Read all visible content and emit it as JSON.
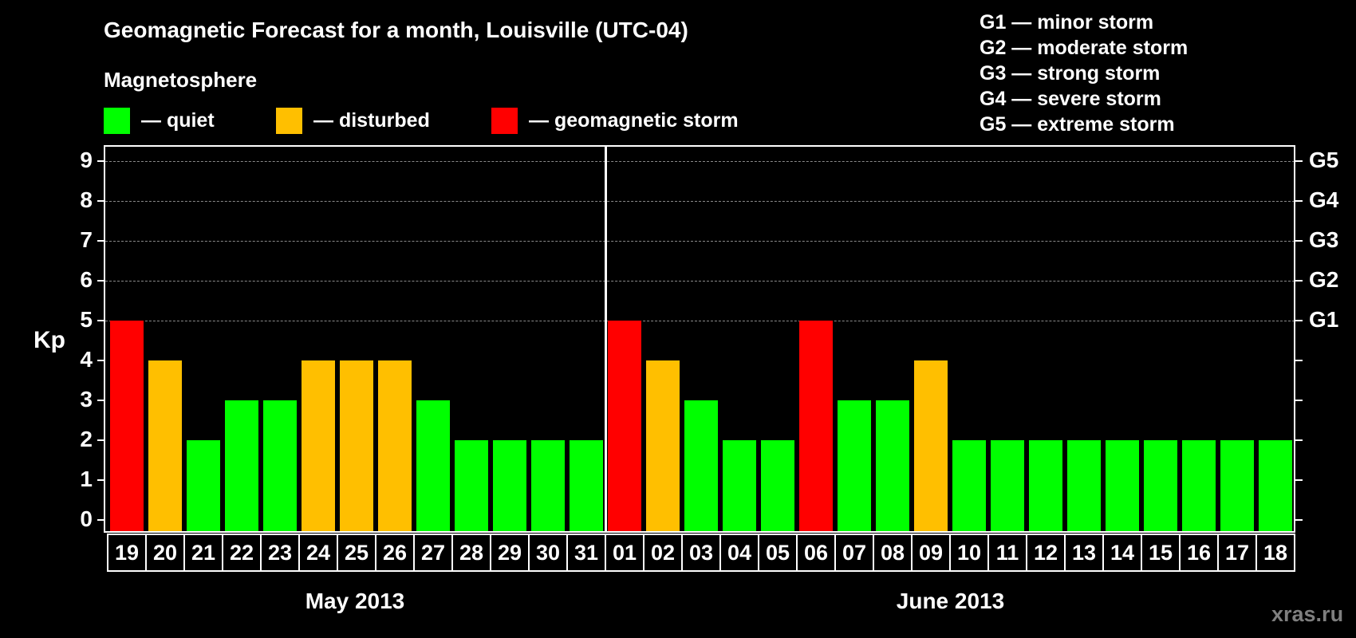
{
  "header": {
    "title": "Geomagnetic Forecast for a month, Louisville (UTC-04)",
    "subtitle": "Magnetosphere"
  },
  "legend": [
    {
      "label": "— quiet",
      "color": "#00ff00"
    },
    {
      "label": "— disturbed",
      "color": "#ffbf00"
    },
    {
      "label": "— geomagnetic storm",
      "color": "#ff0000"
    }
  ],
  "gscale": [
    "G1 — minor storm",
    "G2 — moderate storm",
    "G3 — strong storm",
    "G4 — severe storm",
    "G5 — extreme storm"
  ],
  "axes": {
    "ylabel": "Kp",
    "yticks": [
      "0",
      "1",
      "2",
      "3",
      "4",
      "5",
      "6",
      "7",
      "8",
      "9"
    ],
    "gticks": [
      {
        "kp": 5,
        "label": "G1"
      },
      {
        "kp": 6,
        "label": "G2"
      },
      {
        "kp": 7,
        "label": "G3"
      },
      {
        "kp": 8,
        "label": "G4"
      },
      {
        "kp": 9,
        "label": "G5"
      }
    ],
    "months": [
      "May 2013",
      "June 2013"
    ]
  },
  "watermark": "xras.ru",
  "colors": {
    "quiet": "#00ff00",
    "disturbed": "#ffbf00",
    "storm": "#ff0000"
  },
  "chart_data": {
    "type": "bar",
    "title": "Geomagnetic Forecast for a month, Louisville (UTC-04)",
    "xlabel": "",
    "ylabel": "Kp",
    "ylim": [
      0,
      9
    ],
    "grid": true,
    "legend_position": "top",
    "categories": [
      "19",
      "20",
      "21",
      "22",
      "23",
      "24",
      "25",
      "26",
      "27",
      "28",
      "29",
      "30",
      "31",
      "01",
      "02",
      "03",
      "04",
      "05",
      "06",
      "07",
      "08",
      "09",
      "10",
      "11",
      "12",
      "13",
      "14",
      "15",
      "16",
      "17",
      "18"
    ],
    "months": [
      {
        "label": "May 2013",
        "days": 13
      },
      {
        "label": "June 2013",
        "days": 18
      }
    ],
    "values": [
      5,
      4,
      2,
      3,
      3,
      4,
      4,
      4,
      3,
      2,
      2,
      2,
      2,
      5,
      4,
      3,
      2,
      2,
      5,
      3,
      3,
      4,
      2,
      2,
      2,
      2,
      2,
      2,
      2,
      2,
      2
    ],
    "status": [
      "storm",
      "disturbed",
      "quiet",
      "quiet",
      "quiet",
      "disturbed",
      "disturbed",
      "disturbed",
      "quiet",
      "quiet",
      "quiet",
      "quiet",
      "quiet",
      "storm",
      "disturbed",
      "quiet",
      "quiet",
      "quiet",
      "storm",
      "quiet",
      "quiet",
      "disturbed",
      "quiet",
      "quiet",
      "quiet",
      "quiet",
      "quiet",
      "quiet",
      "quiet",
      "quiet",
      "quiet"
    ],
    "secondary_axis": {
      "G1": 5,
      "G2": 6,
      "G3": 7,
      "G4": 8,
      "G5": 9
    }
  }
}
